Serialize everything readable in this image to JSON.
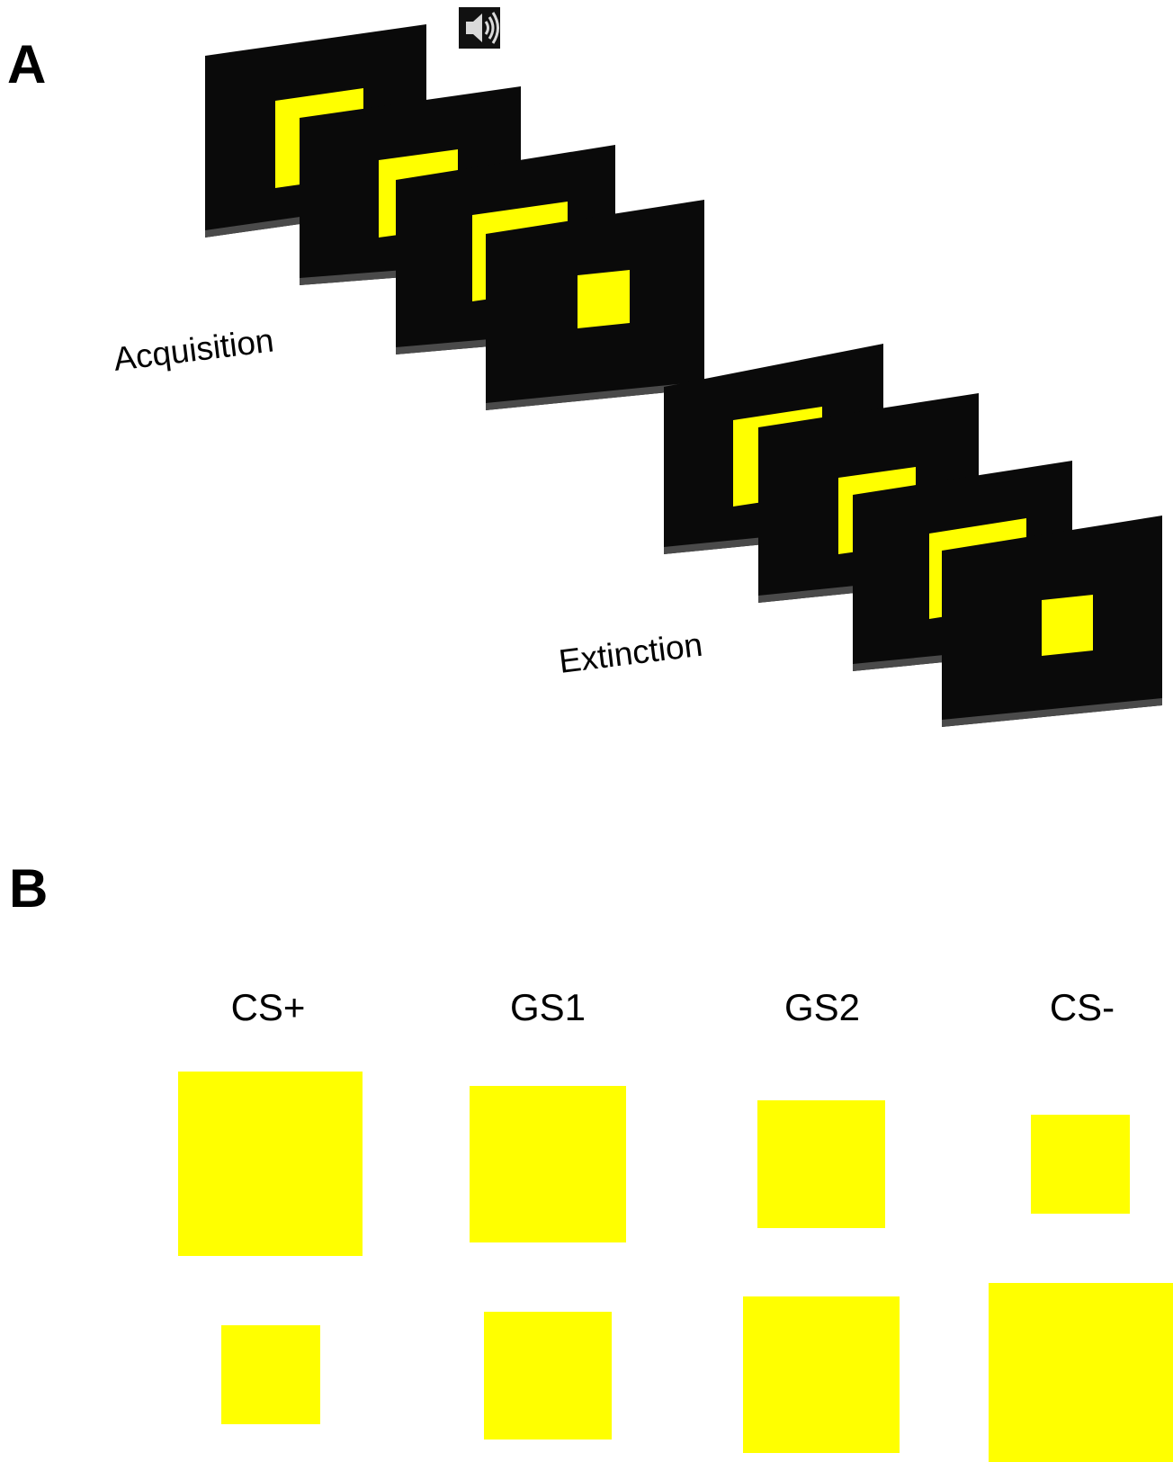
{
  "panel_a": {
    "label": "A",
    "acquisition_label": "Acquisition",
    "extinction_label": "Extinction",
    "speaker_icon": "speaker-icon",
    "screen_color": "#0a0a0a",
    "stimulus_color": "#ffff00"
  },
  "panel_b": {
    "label": "B",
    "columns": [
      {
        "label": "CS+"
      },
      {
        "label": "GS1"
      },
      {
        "label": "GS2"
      },
      {
        "label": "CS-"
      }
    ],
    "stimulus_color": "#ffff00"
  }
}
